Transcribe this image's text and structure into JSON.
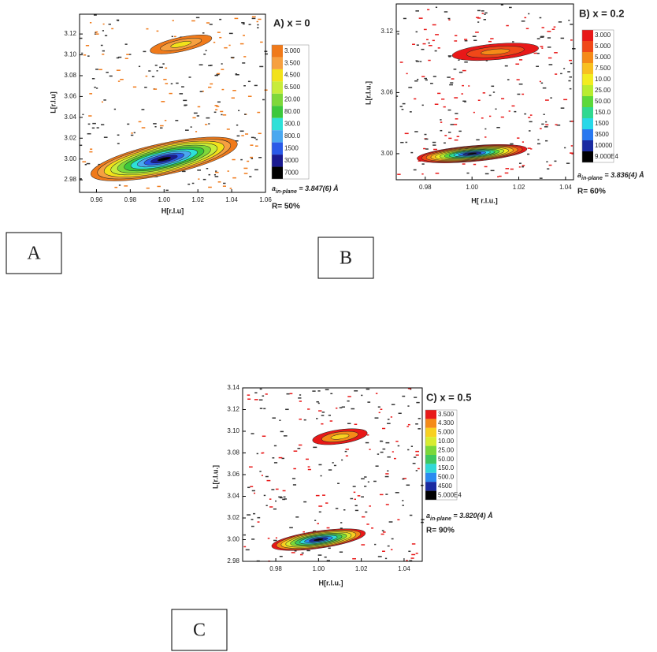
{
  "chart_data": [
    {
      "type": "contour",
      "title": "A)  x = 0",
      "xlabel": "H[r.l.u]",
      "ylabel": "L[r.l.u]",
      "xlim": [
        0.95,
        1.06
      ],
      "ylim": [
        2.968,
        3.139
      ],
      "xticks": [
        0.96,
        0.98,
        {
          "value": 1,
          "label": "1.00"
        },
        1.02,
        1.04,
        1.06
      ],
      "yticks": [
        2.98,
        {
          "value": 3,
          "label": "3.00"
        },
        3.02,
        3.04,
        3.06,
        3.08,
        {
          "value": 3.1,
          "label": "3.10"
        },
        3.12
      ],
      "levels": [
        {
          "value": 3,
          "label": "3.000"
        },
        {
          "value": 3.5,
          "label": "3.500"
        },
        {
          "value": 4.5,
          "label": "4.500"
        },
        {
          "value": 6.5,
          "label": "6.500"
        },
        {
          "value": 20,
          "label": "20.00"
        },
        {
          "value": 80,
          "label": "80.00"
        },
        {
          "value": 300,
          "label": "300.0"
        },
        {
          "value": 800,
          "label": "800.0"
        },
        1500,
        3000,
        7000
      ],
      "colors": [
        "#f07a1a",
        "#f6a040",
        "#f2e21a",
        "#c8ec3a",
        "#7ed83a",
        "#3cc83c",
        "#2ee0d8",
        "#4aa8f0",
        "#2a5ae8",
        "#1a1a90",
        "#000000"
      ],
      "peaks": [
        {
          "x": 1,
          "y": 3
        },
        {
          "x": 1.01,
          "y": 3.11
        }
      ],
      "lattice_symbol": "a",
      "lattice_subscript": "in-plane",
      "lattice_value": " = 3.847(6) Å",
      "r_text": "R= 50%"
    },
    {
      "type": "contour",
      "title": "B)  x = 0.2",
      "xlabel": "H[ r.l.u.]",
      "ylabel": "L[r.l.u.]",
      "xlim": [
        0.9676,
        1.0434
      ],
      "ylim": [
        2.9744,
        3.147
      ],
      "xticks": [
        0.98,
        {
          "value": 1,
          "label": "1.00"
        },
        1.02,
        1.04
      ],
      "yticks": [
        {
          "value": 3,
          "label": "3.00"
        },
        3.06,
        3.12
      ],
      "levels": [
        {
          "value": 3,
          "label": "3.000"
        },
        {
          "value": 5,
          "label": "5.000"
        },
        {
          "value": 5,
          "label": "5.000"
        },
        {
          "value": 7.5,
          "label": "7.500"
        },
        {
          "value": 10,
          "label": "10.00"
        },
        {
          "value": 25,
          "label": "25.00"
        },
        {
          "value": 50,
          "label": "50.00"
        },
        {
          "value": 150,
          "label": "150.0"
        },
        1500,
        3500,
        10000,
        {
          "value": 90000,
          "label": "9.000E4"
        }
      ],
      "colors": [
        "#e81818",
        "#f04818",
        "#f58a18",
        "#f8c020",
        "#f2ec20",
        "#b8ec30",
        "#5cd83a",
        "#30d890",
        "#28d8e8",
        "#2878f0",
        "#1a2aa0",
        "#000000"
      ],
      "peaks": [
        {
          "x": 1,
          "y": 3
        },
        {
          "x": 1.01,
          "y": 3.1
        }
      ],
      "lattice_symbol": "a",
      "lattice_subscript": "in-plane",
      "lattice_value": " = 3.836(4) Å",
      "r_text": "R= 60%"
    },
    {
      "type": "contour",
      "title": "C)  x = 0.5",
      "xlabel": "H[r.l.u.]",
      "ylabel": "L[r.l.u.]",
      "xlim": [
        0.9645,
        1.0485
      ],
      "ylim": [
        2.98,
        3.14
      ],
      "xticks": [
        0.98,
        {
          "value": 1,
          "label": "1.00"
        },
        1.02,
        1.04
      ],
      "yticks": [
        2.98,
        {
          "value": 3,
          "label": "3.00"
        },
        3.02,
        3.04,
        3.06,
        3.08,
        {
          "value": 3.1,
          "label": "3.10"
        },
        3.12,
        3.14
      ],
      "levels": [
        {
          "value": 3.5,
          "label": "3.500"
        },
        {
          "value": 4.3,
          "label": "4.300"
        },
        {
          "value": 5,
          "label": "5.000"
        },
        {
          "value": 10,
          "label": "10.00"
        },
        {
          "value": 25,
          "label": "25.00"
        },
        {
          "value": 50,
          "label": "50.00"
        },
        {
          "value": 150,
          "label": "150.0"
        },
        {
          "value": 500,
          "label": "500.0"
        },
        4500,
        {
          "value": 50000,
          "label": "5.000E4"
        }
      ],
      "colors": [
        "#e81818",
        "#f58a18",
        "#f8d020",
        "#d8ec30",
        "#7ad83a",
        "#3cc860",
        "#30d8d8",
        "#2a8af0",
        "#1a2aa0",
        "#000000"
      ],
      "peaks": [
        {
          "x": 1,
          "y": 3
        },
        {
          "x": 1.01,
          "y": 3.095
        }
      ],
      "lattice_symbol": "a",
      "lattice_subscript": "in-plane",
      "lattice_value": " = 3.820(4) Å",
      "r_text": "R= 90%"
    }
  ],
  "panel_labels": [
    "A",
    "B",
    "C"
  ]
}
